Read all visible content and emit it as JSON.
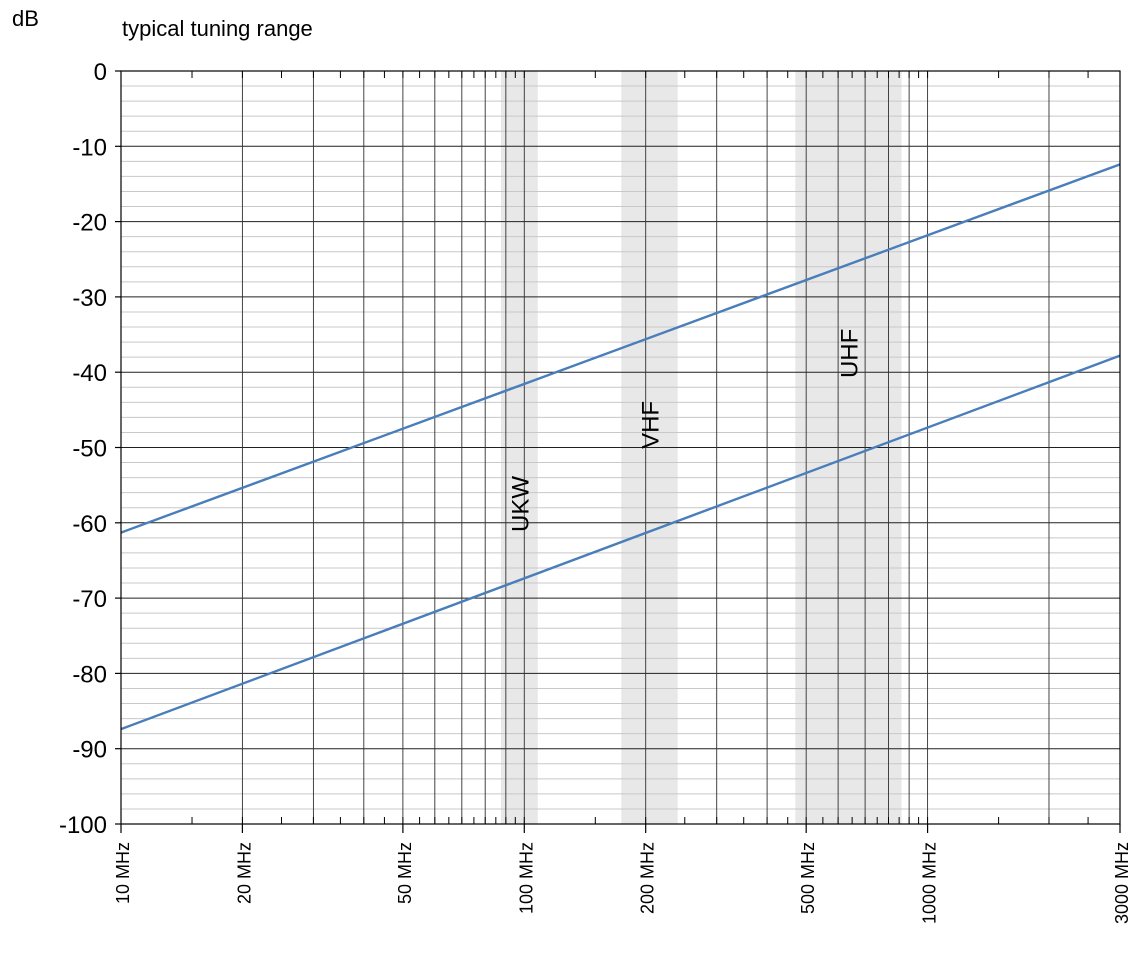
{
  "chart_data": {
    "type": "line",
    "title": "typical tuning range",
    "ylabel": "dB",
    "xlabel": "",
    "x_scale": "log",
    "xlim": [
      10,
      3000
    ],
    "ylim": [
      -100,
      0
    ],
    "grid": true,
    "y_ticks": [
      0,
      -10,
      -20,
      -30,
      -40,
      -50,
      -60,
      -70,
      -80,
      -90,
      -100
    ],
    "x_tick_labels": [
      {
        "value": 10,
        "label": "10 MHz"
      },
      {
        "value": 20,
        "label": "20 MHz"
      },
      {
        "value": 50,
        "label": "50 MHz"
      },
      {
        "value": 100,
        "label": "100 MHz"
      },
      {
        "value": 200,
        "label": "200 MHz"
      },
      {
        "value": 500,
        "label": "500 MHz"
      },
      {
        "value": 1000,
        "label": "1000 MHz"
      },
      {
        "value": 3000,
        "label": "3000 MHz"
      }
    ],
    "bands": [
      {
        "label": "UKW",
        "from": 87.5,
        "to": 108
      },
      {
        "label": "VHF",
        "from": 174,
        "to": 240
      },
      {
        "label": "UHF",
        "from": 470,
        "to": 862
      }
    ],
    "series": [
      {
        "x": [
          10,
          3000
        ],
        "y": [
          -61.3,
          -12.4
        ],
        "color": "#4a7ebb"
      },
      {
        "x": [
          10,
          3000
        ],
        "y": [
          -87.4,
          -37.8
        ],
        "color": "#4a7ebb"
      }
    ]
  }
}
